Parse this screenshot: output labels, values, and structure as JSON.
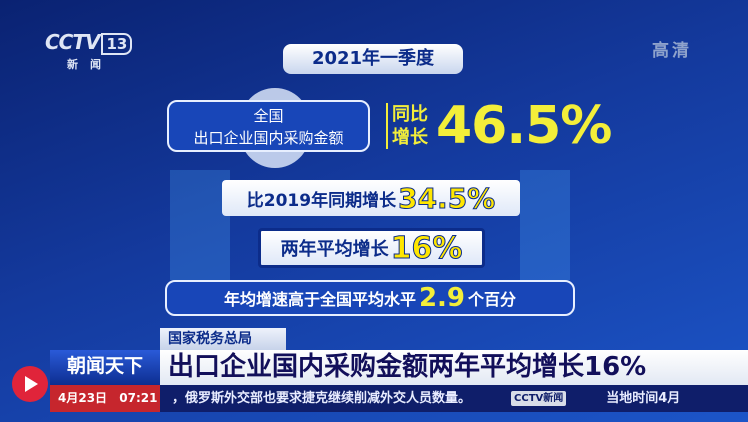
{
  "channel": {
    "logo": "CCTV",
    "number": "13",
    "sub": "新闻",
    "hd": "高清"
  },
  "graphic": {
    "period": "2021年一季度",
    "box1": {
      "line1": "全国",
      "line2": "出口企业国内采购金额"
    },
    "yoy_label1": "同比",
    "yoy_label2": "增长",
    "yoy_value": "46.5%",
    "row2": {
      "label": "比2019年同期增长",
      "value": "34.5%"
    },
    "row3": {
      "label": "两年平均增长",
      "value": "16%"
    },
    "row4": {
      "label": "年均增速高于全国平均水平",
      "value": "2.9",
      "suffix": "个百分"
    }
  },
  "lower_third": {
    "source": "国家税务总局",
    "program": "朝闻天下",
    "headline": "出口企业国内采购金额两年平均增长16%",
    "date": "4月23日",
    "time": "07:21",
    "ticker": "，俄罗斯外交部也要求捷克继续削减外交人员数量。",
    "ticker_logo": "CCTV新闻",
    "ticker_next": "当地时间4月"
  },
  "colors": {
    "accent_yellow": "#f3ee3a",
    "brand_red": "#c6262d",
    "navy": "#0c2c8a"
  }
}
